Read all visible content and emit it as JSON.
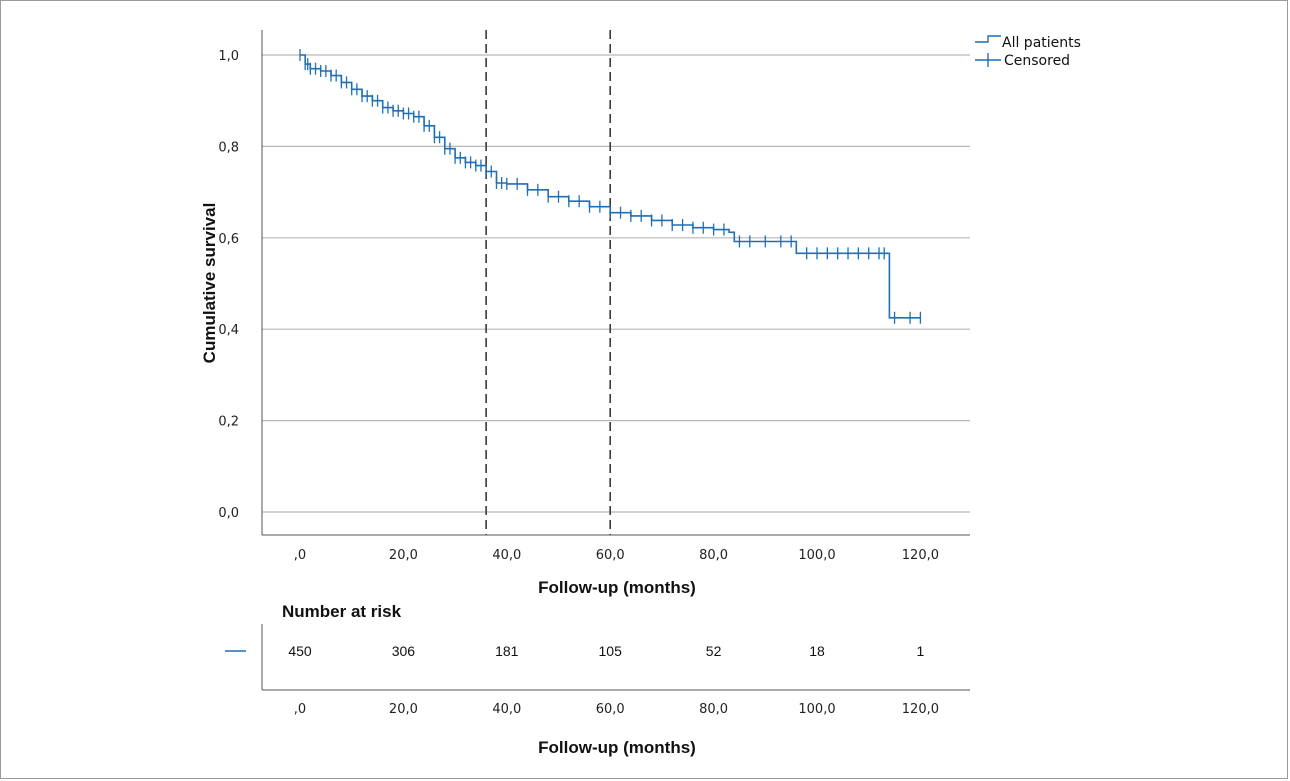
{
  "colors": {
    "curve": "#1f6fb5",
    "grid": "#b8b8b8",
    "axis": "#555555",
    "ref_line": "#3a3a3a"
  },
  "chart_data": {
    "type": "line",
    "subtype": "kaplan-meier",
    "title": "",
    "xlabel": "Follow-up (months)",
    "ylabel": "Cumulative survival",
    "xlim": [
      -5,
      122
    ],
    "ylim": [
      -0.05,
      1.05
    ],
    "x_ticks": [
      0,
      20,
      40,
      60,
      80,
      100,
      120
    ],
    "x_tick_labels": [
      ",0",
      "20,0",
      "40,0",
      "60,0",
      "80,0",
      "100,0",
      "120,0"
    ],
    "y_ticks": [
      0,
      0.2,
      0.4,
      0.6,
      0.8,
      1.0
    ],
    "y_tick_labels": [
      "0,0",
      "0,2",
      "0,4",
      "0,6",
      "0,8",
      "1,0"
    ],
    "grid": {
      "horizontal": true,
      "vertical": false
    },
    "legend": {
      "placement": "top-right",
      "entries": [
        "All patients",
        "Censored"
      ]
    },
    "reference_lines_x": [
      36,
      60
    ],
    "series": [
      {
        "name": "All patients",
        "points": [
          [
            0,
            1.0
          ],
          [
            1,
            0.98
          ],
          [
            2,
            0.97
          ],
          [
            4,
            0.965
          ],
          [
            6,
            0.955
          ],
          [
            8,
            0.94
          ],
          [
            10,
            0.925
          ],
          [
            12,
            0.91
          ],
          [
            14,
            0.9
          ],
          [
            16,
            0.885
          ],
          [
            18,
            0.878
          ],
          [
            20,
            0.872
          ],
          [
            22,
            0.865
          ],
          [
            24,
            0.845
          ],
          [
            26,
            0.82
          ],
          [
            28,
            0.795
          ],
          [
            30,
            0.775
          ],
          [
            32,
            0.765
          ],
          [
            34,
            0.758
          ],
          [
            36,
            0.745
          ],
          [
            38,
            0.72
          ],
          [
            40,
            0.718
          ],
          [
            44,
            0.705
          ],
          [
            48,
            0.69
          ],
          [
            52,
            0.68
          ],
          [
            56,
            0.668
          ],
          [
            60,
            0.655
          ],
          [
            64,
            0.648
          ],
          [
            68,
            0.638
          ],
          [
            72,
            0.628
          ],
          [
            76,
            0.622
          ],
          [
            80,
            0.618
          ],
          [
            83,
            0.612
          ],
          [
            84,
            0.592
          ],
          [
            96,
            0.592
          ],
          [
            96,
            0.566
          ],
          [
            114,
            0.566
          ],
          [
            114,
            0.425
          ],
          [
            120,
            0.425
          ]
        ],
        "censored_x": [
          0,
          1,
          1.5,
          2,
          3,
          4,
          5,
          6,
          7,
          8,
          9,
          10,
          11,
          12,
          13,
          14,
          15,
          16,
          17,
          18,
          19,
          20,
          21,
          22,
          23,
          24,
          25,
          26,
          27,
          28,
          29,
          30,
          31,
          32,
          33,
          34,
          35,
          36,
          37,
          38,
          39,
          40,
          42,
          44,
          46,
          48,
          50,
          52,
          54,
          56,
          58,
          60,
          62,
          64,
          66,
          68,
          70,
          72,
          74,
          76,
          78,
          80,
          82,
          85,
          87,
          90,
          93,
          95,
          98,
          100,
          102,
          104,
          106,
          108,
          110,
          112,
          113,
          115,
          118,
          120
        ]
      }
    ]
  },
  "risk_table": {
    "title": "Number at risk",
    "xlabel": "Follow-up (months)",
    "x_tick_labels": [
      ",0",
      "20,0",
      "40,0",
      "60,0",
      "80,0",
      "100,0",
      "120,0"
    ],
    "counts": [
      "450",
      "306",
      "181",
      "105",
      "52",
      "18",
      "1"
    ]
  }
}
